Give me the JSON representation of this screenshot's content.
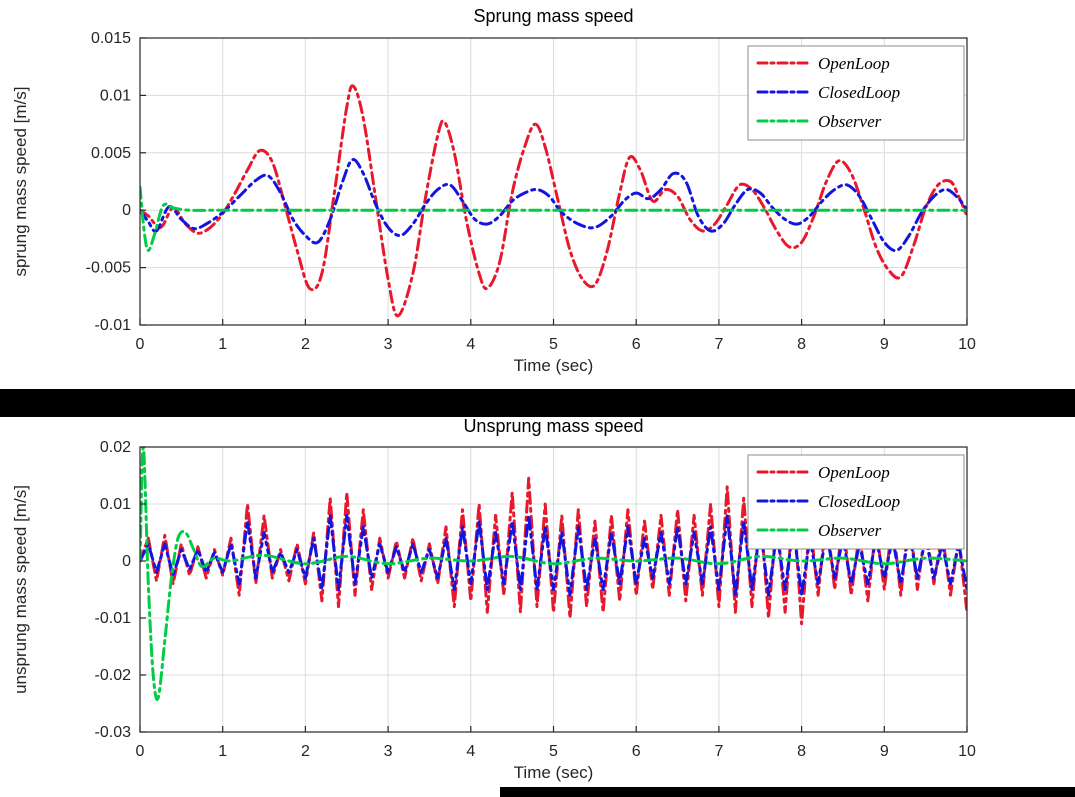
{
  "colors": {
    "open_loop": "#e8192c",
    "closed_loop": "#1414e0",
    "observer": "#00cc44",
    "grid": "#dcdcdc",
    "axis": "#262626",
    "text": "#262626",
    "title": "#000000",
    "legend_border": "#8c8c8c",
    "separator": "#000000"
  },
  "chart_data": [
    {
      "type": "line",
      "title": "Sprung mass speed",
      "xlabel": "Time (sec)",
      "ylabel": "sprung mass speed [m/s]",
      "xlim": [
        0,
        10
      ],
      "ylim": [
        -0.01,
        0.015
      ],
      "xticks": [
        0,
        1,
        2,
        3,
        4,
        5,
        6,
        7,
        8,
        9,
        10
      ],
      "xtick_labels": [
        "0",
        "1",
        "2",
        "3",
        "4",
        "5",
        "6",
        "7",
        "8",
        "9",
        "10"
      ],
      "yticks": [
        -0.01,
        -0.005,
        0,
        0.005,
        0.01,
        0.015
      ],
      "ytick_labels": [
        "-0.01",
        "-0.005",
        "0",
        "0.005",
        "0.01",
        "0.015"
      ],
      "grid": true,
      "legend_position": "top-right",
      "series": [
        {
          "name": "OpenLoop",
          "color": "#e8192c",
          "style": "dash-dot",
          "smooth": true,
          "points": [
            [
              0,
              0
            ],
            [
              0.1,
              -0.0005
            ],
            [
              0.25,
              -0.0015
            ],
            [
              0.4,
              0.0002
            ],
            [
              0.55,
              -0.0012
            ],
            [
              0.7,
              -0.002
            ],
            [
              0.85,
              -0.0015
            ],
            [
              1.0,
              -0.0003
            ],
            [
              1.15,
              0.0015
            ],
            [
              1.3,
              0.0035
            ],
            [
              1.45,
              0.0052
            ],
            [
              1.6,
              0.0042
            ],
            [
              1.75,
              0.0005
            ],
            [
              1.9,
              -0.0035
            ],
            [
              2.05,
              -0.0068
            ],
            [
              2.2,
              -0.0055
            ],
            [
              2.35,
              0.0015
            ],
            [
              2.5,
              0.009
            ],
            [
              2.58,
              0.0108
            ],
            [
              2.7,
              0.008
            ],
            [
              2.85,
              0.001
            ],
            [
              3.0,
              -0.006
            ],
            [
              3.12,
              -0.0092
            ],
            [
              3.3,
              -0.0055
            ],
            [
              3.45,
              0.001
            ],
            [
              3.6,
              0.0065
            ],
            [
              3.68,
              0.0077
            ],
            [
              3.8,
              0.005
            ],
            [
              3.95,
              -0.001
            ],
            [
              4.1,
              -0.0055
            ],
            [
              4.2,
              -0.0068
            ],
            [
              4.35,
              -0.0045
            ],
            [
              4.5,
              0.0015
            ],
            [
              4.65,
              0.0055
            ],
            [
              4.78,
              0.0075
            ],
            [
              4.9,
              0.0055
            ],
            [
              5.05,
              0.001
            ],
            [
              5.2,
              -0.0035
            ],
            [
              5.35,
              -0.006
            ],
            [
              5.5,
              -0.0065
            ],
            [
              5.65,
              -0.0035
            ],
            [
              5.8,
              0.0015
            ],
            [
              5.92,
              0.0046
            ],
            [
              6.05,
              0.0035
            ],
            [
              6.2,
              0.0008
            ],
            [
              6.35,
              0.0018
            ],
            [
              6.5,
              0.0012
            ],
            [
              6.65,
              -0.0008
            ],
            [
              6.8,
              -0.0018
            ],
            [
              6.95,
              -0.0012
            ],
            [
              7.1,
              0.0005
            ],
            [
              7.25,
              0.0022
            ],
            [
              7.4,
              0.0018
            ],
            [
              7.55,
              0.0002
            ],
            [
              7.7,
              -0.0018
            ],
            [
              7.85,
              -0.0032
            ],
            [
              8.0,
              -0.0028
            ],
            [
              8.15,
              -0.0005
            ],
            [
              8.3,
              0.0025
            ],
            [
              8.45,
              0.0043
            ],
            [
              8.6,
              0.0032
            ],
            [
              8.75,
              0.0002
            ],
            [
              8.9,
              -0.0032
            ],
            [
              9.05,
              -0.0052
            ],
            [
              9.2,
              -0.0058
            ],
            [
              9.35,
              -0.0032
            ],
            [
              9.5,
              0.0002
            ],
            [
              9.65,
              0.0022
            ],
            [
              9.8,
              0.0025
            ],
            [
              9.9,
              0.0012
            ],
            [
              10,
              -0.0005
            ]
          ]
        },
        {
          "name": "ClosedLoop",
          "color": "#1414e0",
          "style": "dash-dot",
          "smooth": true,
          "points": [
            [
              0,
              0
            ],
            [
              0.1,
              -0.001
            ],
            [
              0.2,
              -0.0018
            ],
            [
              0.35,
              0.0003
            ],
            [
              0.5,
              -0.0008
            ],
            [
              0.65,
              -0.0016
            ],
            [
              0.8,
              -0.0012
            ],
            [
              1.0,
              -0.0002
            ],
            [
              1.2,
              0.0012
            ],
            [
              1.4,
              0.0026
            ],
            [
              1.55,
              0.003
            ],
            [
              1.7,
              0.0015
            ],
            [
              1.85,
              -0.0008
            ],
            [
              2.0,
              -0.0022
            ],
            [
              2.15,
              -0.0028
            ],
            [
              2.3,
              -0.0008
            ],
            [
              2.45,
              0.0025
            ],
            [
              2.57,
              0.0044
            ],
            [
              2.7,
              0.0032
            ],
            [
              2.85,
              0.0005
            ],
            [
              3.0,
              -0.0015
            ],
            [
              3.15,
              -0.0022
            ],
            [
              3.3,
              -0.0012
            ],
            [
              3.45,
              0.0005
            ],
            [
              3.6,
              0.0018
            ],
            [
              3.75,
              0.0022
            ],
            [
              3.9,
              0.0008
            ],
            [
              4.05,
              -0.0008
            ],
            [
              4.2,
              -0.0012
            ],
            [
              4.35,
              -0.0005
            ],
            [
              4.5,
              0.0008
            ],
            [
              4.65,
              0.0015
            ],
            [
              4.8,
              0.0018
            ],
            [
              4.95,
              0.0012
            ],
            [
              5.1,
              -0.0002
            ],
            [
              5.3,
              -0.0012
            ],
            [
              5.5,
              -0.0015
            ],
            [
              5.7,
              -0.0005
            ],
            [
              5.85,
              0.0008
            ],
            [
              6.0,
              0.0015
            ],
            [
              6.15,
              0.001
            ],
            [
              6.3,
              0.0018
            ],
            [
              6.45,
              0.0032
            ],
            [
              6.6,
              0.0025
            ],
            [
              6.75,
              -0.0005
            ],
            [
              6.9,
              -0.0018
            ],
            [
              7.05,
              -0.0012
            ],
            [
              7.2,
              0.0005
            ],
            [
              7.35,
              0.0018
            ],
            [
              7.5,
              0.0015
            ],
            [
              7.65,
              0.0002
            ],
            [
              7.8,
              -0.0008
            ],
            [
              7.95,
              -0.0012
            ],
            [
              8.1,
              -0.0005
            ],
            [
              8.25,
              0.0008
            ],
            [
              8.4,
              0.0018
            ],
            [
              8.55,
              0.0022
            ],
            [
              8.7,
              0.0012
            ],
            [
              8.85,
              -0.0008
            ],
            [
              9.0,
              -0.0028
            ],
            [
              9.15,
              -0.0035
            ],
            [
              9.3,
              -0.0022
            ],
            [
              9.45,
              -0.0002
            ],
            [
              9.6,
              0.0012
            ],
            [
              9.75,
              0.0018
            ],
            [
              9.9,
              0.001
            ],
            [
              10,
              0
            ]
          ]
        },
        {
          "name": "Observer",
          "color": "#00cc44",
          "style": "dash-dot",
          "smooth": true,
          "points": [
            [
              0,
              0.002
            ],
            [
              0.05,
              -0.0018
            ],
            [
              0.1,
              -0.0035
            ],
            [
              0.18,
              -0.002
            ],
            [
              0.28,
              0.0004
            ],
            [
              0.4,
              0.0002
            ],
            [
              0.6,
              0
            ],
            [
              1,
              0
            ],
            [
              2,
              0
            ],
            [
              3,
              0
            ],
            [
              4,
              0
            ],
            [
              5,
              0
            ],
            [
              6,
              0
            ],
            [
              7,
              0
            ],
            [
              8,
              0
            ],
            [
              9,
              0
            ],
            [
              10,
              0
            ]
          ]
        }
      ]
    },
    {
      "type": "line",
      "title": "Unsprung mass speed",
      "xlabel": "Time (sec)",
      "ylabel": "unsprung mass speed [m/s]",
      "xlim": [
        0,
        10
      ],
      "ylim": [
        -0.03,
        0.02
      ],
      "xticks": [
        0,
        1,
        2,
        3,
        4,
        5,
        6,
        7,
        8,
        9,
        10
      ],
      "xtick_labels": [
        "0",
        "1",
        "2",
        "3",
        "4",
        "5",
        "6",
        "7",
        "8",
        "9",
        "10"
      ],
      "yticks": [
        -0.03,
        -0.02,
        -0.01,
        0,
        0.01,
        0.02
      ],
      "ytick_labels": [
        "-0.03",
        "-0.02",
        "-0.01",
        "0",
        "0.01",
        "0.02"
      ],
      "grid": true,
      "legend_position": "top-right",
      "series": [
        {
          "name": "OpenLoop",
          "color": "#e8192c",
          "style": "dash-dot",
          "smooth": false,
          "x_start": 0,
          "x_step": 0.1,
          "values": [
            0,
            0.004,
            -0.0035,
            0.0045,
            -0.004,
            0.003,
            -0.0025,
            0.0025,
            -0.003,
            0.002,
            -0.0025,
            0.004,
            -0.006,
            0.01,
            -0.004,
            0.008,
            -0.003,
            0.002,
            -0.0035,
            0.003,
            -0.004,
            0.005,
            -0.007,
            0.011,
            -0.008,
            0.012,
            -0.006,
            0.009,
            -0.005,
            0.004,
            -0.003,
            0.0035,
            -0.003,
            0.004,
            -0.0035,
            0.003,
            -0.004,
            0.006,
            -0.008,
            0.009,
            -0.007,
            0.01,
            -0.009,
            0.008,
            -0.006,
            0.012,
            -0.009,
            0.0145,
            -0.008,
            0.01,
            -0.009,
            0.008,
            -0.01,
            0.009,
            -0.008,
            0.007,
            -0.009,
            0.008,
            -0.007,
            0.009,
            -0.006,
            0.007,
            -0.005,
            0.008,
            -0.006,
            0.009,
            -0.007,
            0.008,
            -0.006,
            0.01,
            -0.008,
            0.013,
            -0.009,
            0.011,
            -0.008,
            0.009,
            -0.01,
            0.008,
            -0.009,
            0.01,
            -0.011,
            0.007,
            -0.006,
            0.008,
            -0.005,
            0.007,
            -0.006,
            0.005,
            -0.007,
            0.006,
            -0.005,
            0.007,
            -0.006,
            0.008,
            -0.005,
            0.006,
            -0.004,
            0.005,
            -0.006,
            0.004,
            -0.009
          ]
        },
        {
          "name": "ClosedLoop",
          "color": "#1414e0",
          "style": "dash-dot",
          "smooth": false,
          "x_start": 0,
          "x_step": 0.1,
          "values": [
            0,
            0.003,
            -0.002,
            0.003,
            -0.0025,
            0.002,
            -0.0015,
            0.002,
            -0.002,
            0.0015,
            -0.002,
            0.003,
            -0.004,
            0.007,
            -0.003,
            0.005,
            -0.002,
            0.0015,
            -0.002,
            0.002,
            -0.003,
            0.004,
            -0.005,
            0.008,
            -0.005,
            0.008,
            -0.004,
            0.006,
            -0.003,
            0.003,
            -0.002,
            0.0025,
            -0.002,
            0.003,
            -0.002,
            0.002,
            -0.003,
            0.004,
            -0.005,
            0.006,
            -0.004,
            0.007,
            -0.005,
            0.005,
            -0.004,
            0.007,
            -0.005,
            0.008,
            -0.005,
            0.006,
            -0.005,
            0.005,
            -0.006,
            0.006,
            -0.005,
            0.004,
            -0.005,
            0.005,
            -0.004,
            0.006,
            -0.004,
            0.004,
            -0.003,
            0.005,
            -0.004,
            0.006,
            -0.004,
            0.005,
            -0.004,
            0.006,
            -0.005,
            0.008,
            -0.006,
            0.007,
            -0.005,
            0.006,
            -0.006,
            0.005,
            -0.005,
            0.006,
            -0.006,
            0.004,
            -0.004,
            0.005,
            -0.003,
            0.004,
            -0.004,
            0.003,
            -0.004,
            0.004,
            -0.003,
            0.004,
            -0.004,
            0.005,
            -0.003,
            0.004,
            -0.003,
            0.003,
            -0.004,
            0.003,
            -0.005
          ]
        },
        {
          "name": "Observer",
          "color": "#00cc44",
          "style": "dash-dot",
          "smooth": true,
          "points": [
            [
              0,
              0
            ],
            [
              0.04,
              0.02
            ],
            [
              0.1,
              -0.004
            ],
            [
              0.16,
              -0.02
            ],
            [
              0.22,
              -0.024
            ],
            [
              0.3,
              -0.014
            ],
            [
              0.38,
              -0.003
            ],
            [
              0.46,
              0.004
            ],
            [
              0.55,
              0.005
            ],
            [
              0.65,
              0.002
            ],
            [
              0.75,
              -0.001
            ],
            [
              0.9,
              0.0005
            ],
            [
              1.1,
              0
            ],
            [
              1.5,
              0.001
            ],
            [
              2,
              -0.0005
            ],
            [
              2.5,
              0.0008
            ],
            [
              3,
              -0.0005
            ],
            [
              3.5,
              0.0005
            ],
            [
              4,
              0
            ],
            [
              4.5,
              0.0008
            ],
            [
              5,
              -0.0005
            ],
            [
              5.5,
              0.0005
            ],
            [
              6,
              0
            ],
            [
              6.5,
              0.0005
            ],
            [
              7,
              -0.0005
            ],
            [
              7.5,
              0.0008
            ],
            [
              8,
              0
            ],
            [
              8.5,
              0.0005
            ],
            [
              9,
              -0.0005
            ],
            [
              9.5,
              0.0005
            ],
            [
              10,
              0
            ]
          ]
        }
      ]
    }
  ]
}
